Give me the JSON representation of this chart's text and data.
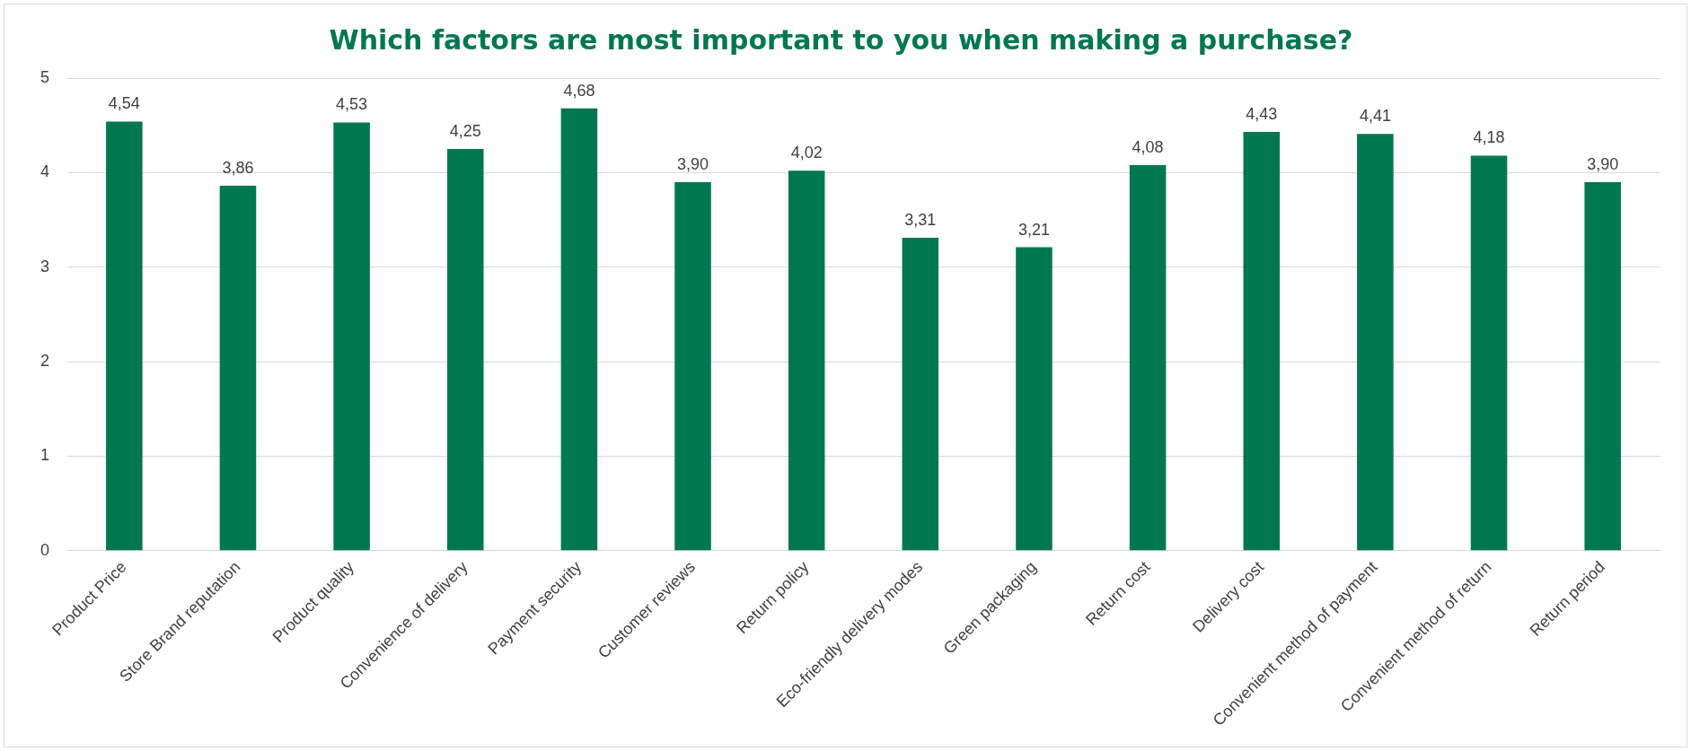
{
  "chart_data": {
    "type": "bar",
    "title": "Which factors are most important to you when making a purchase?",
    "categories": [
      "Product Price",
      "Store Brand reputation",
      "Product quality",
      "Convenience of delivery",
      "Payment security",
      "Customer reviews",
      "Return policy",
      "Eco-friendly delivery modes",
      "Green packaging",
      "Return cost",
      "Delivery cost",
      "Convenient method of payment",
      "Convenient method of return",
      "Return period"
    ],
    "values": [
      4.54,
      3.86,
      4.53,
      4.25,
      4.68,
      3.9,
      4.02,
      3.31,
      3.21,
      4.08,
      4.43,
      4.41,
      4.18,
      3.9
    ],
    "value_labels": [
      "4,54",
      "3,86",
      "4,53",
      "4,25",
      "4,68",
      "3,90",
      "4,02",
      "3,31",
      "3,21",
      "4,08",
      "4,43",
      "4,41",
      "4,18",
      "3,90"
    ],
    "color": "#00784f",
    "ylim": [
      0,
      5
    ],
    "yticks": [
      0,
      1,
      2,
      3,
      4,
      5
    ],
    "grid": "y",
    "legend": false
  }
}
